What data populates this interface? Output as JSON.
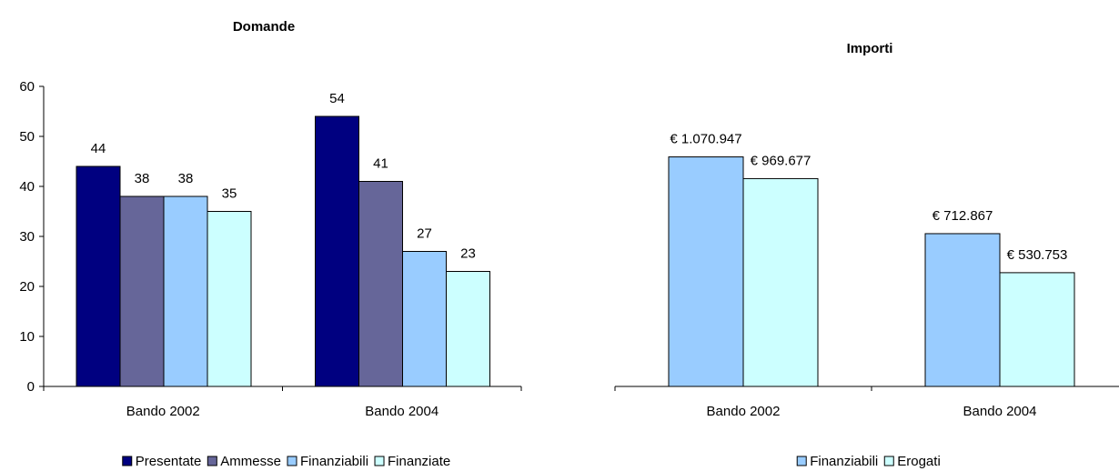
{
  "chart_data": [
    {
      "type": "bar",
      "title": "Domande",
      "categories": [
        "Bando 2002",
        "Bando 2004"
      ],
      "series": [
        {
          "name": "Presentate",
          "values": [
            44,
            54
          ],
          "color": "#000080"
        },
        {
          "name": "Ammesse",
          "values": [
            38,
            41
          ],
          "color": "#666699"
        },
        {
          "name": "Finanziabili",
          "values": [
            38,
            27
          ],
          "color": "#99ccff"
        },
        {
          "name": "Finanziate",
          "values": [
            35,
            23
          ],
          "color": "#ccffff"
        }
      ],
      "data_labels": [
        [
          "44",
          "54"
        ],
        [
          "38",
          "41"
        ],
        [
          "38",
          "27"
        ],
        [
          "35",
          "23"
        ]
      ],
      "ylim": [
        0,
        60
      ],
      "yticks": [
        0,
        10,
        20,
        30,
        40,
        50,
        60
      ],
      "legend": "bottom",
      "grid": false
    },
    {
      "type": "bar",
      "title": "Importi",
      "categories": [
        "Bando 2002",
        "Bando 2004"
      ],
      "series": [
        {
          "name": "Finanziabili",
          "values": [
            1070947,
            712867
          ],
          "color": "#99ccff"
        },
        {
          "name": "Erogati",
          "values": [
            969677,
            530753
          ],
          "color": "#ccffff"
        }
      ],
      "data_labels": [
        [
          "€ 1.070.947",
          "€ 712.867"
        ],
        [
          "€ 969.677",
          "€ 530.753"
        ]
      ],
      "ylim": [
        0,
        1400000
      ],
      "legend": "bottom",
      "grid": false
    }
  ]
}
